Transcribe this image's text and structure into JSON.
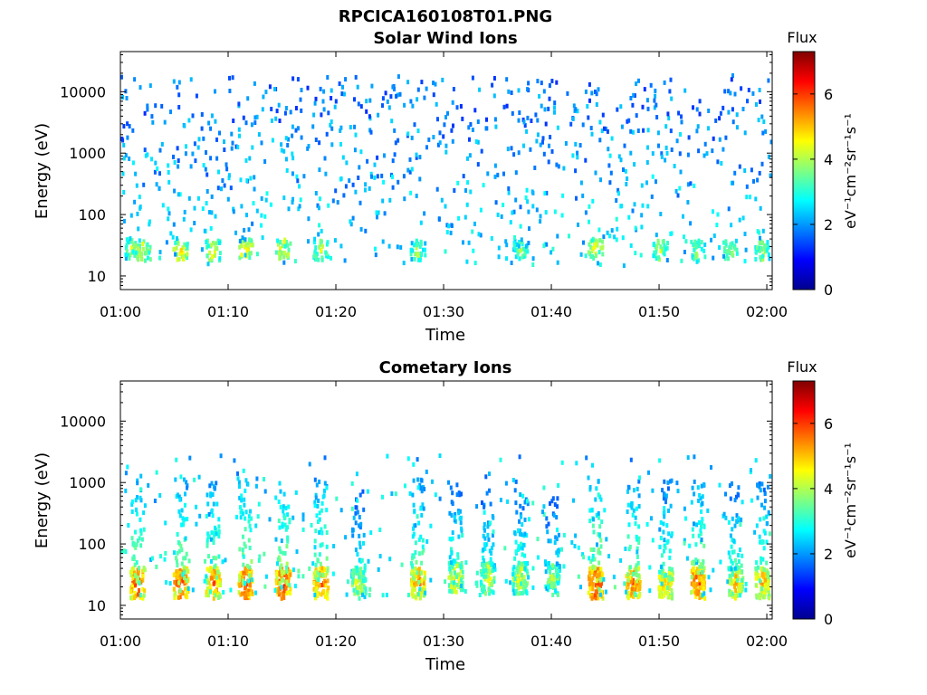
{
  "figure_title": "RPCICA160108T01.PNG",
  "colors": {
    "colormap": [
      "#00008f",
      "#0000ff",
      "#0080ff",
      "#00ffff",
      "#80ff80",
      "#ffff00",
      "#ff8000",
      "#ff0000",
      "#800000"
    ],
    "axis": "#000000",
    "background": "#ffffff"
  },
  "chart_data": [
    {
      "type": "heatmap",
      "title": "Solar Wind Ions",
      "xlabel": "Time",
      "ylabel": "Energy (eV)",
      "x_ticks": [
        "01:00",
        "01:10",
        "01:20",
        "01:30",
        "01:40",
        "01:50",
        "02:00"
      ],
      "x_range": [
        "01:00",
        "02:00"
      ],
      "y_scale": "log",
      "y_ticks": [
        10,
        100,
        1000,
        10000
      ],
      "y_tick_labels": [
        "10",
        "100",
        "1000",
        "10000"
      ],
      "ylim": [
        6,
        45000
      ],
      "colorbar": {
        "title": "Flux",
        "label": "eV⁻¹cm⁻²sr⁻¹s⁻¹",
        "range": [
          0,
          7.3
        ],
        "ticks": [
          "0",
          "2",
          "4",
          "6"
        ]
      },
      "features": [
        {
          "t_min": 1,
          "e_ev": 30,
          "level": 4.8
        },
        {
          "t_min": 2,
          "e_ev": 28,
          "level": 5.0
        },
        {
          "t_min": 5.5,
          "e_ev": 28,
          "level": 5.3
        },
        {
          "t_min": 8.5,
          "e_ev": 28,
          "level": 5.0
        },
        {
          "t_min": 11.5,
          "e_ev": 30,
          "level": 5.4
        },
        {
          "t_min": 15,
          "e_ev": 30,
          "level": 5.2
        },
        {
          "t_min": 18.5,
          "e_ev": 28,
          "level": 4.8
        },
        {
          "t_min": 27.5,
          "e_ev": 28,
          "level": 4.5
        },
        {
          "t_min": 37,
          "e_ev": 28,
          "level": 4.4
        },
        {
          "t_min": 44,
          "e_ev": 30,
          "level": 5.2
        },
        {
          "t_min": 50,
          "e_ev": 28,
          "level": 4.6
        },
        {
          "t_min": 53.5,
          "e_ev": 28,
          "level": 4.6
        },
        {
          "t_min": 56.5,
          "e_ev": 28,
          "level": 4.5
        },
        {
          "t_min": 59.5,
          "e_ev": 28,
          "level": 4.6
        }
      ],
      "background_level": 2.2
    },
    {
      "type": "heatmap",
      "title": "Cometary Ions",
      "xlabel": "Time",
      "ylabel": "Energy (eV)",
      "x_ticks": [
        "01:00",
        "01:10",
        "01:20",
        "01:30",
        "01:40",
        "01:50",
        "02:00"
      ],
      "x_range": [
        "01:00",
        "02:00"
      ],
      "y_scale": "log",
      "y_ticks": [
        10,
        100,
        1000,
        10000
      ],
      "y_tick_labels": [
        "10",
        "100",
        "1000",
        "10000"
      ],
      "ylim": [
        6,
        45000
      ],
      "colorbar": {
        "title": "Flux",
        "label": "eV⁻¹cm⁻²sr⁻¹s⁻¹",
        "range": [
          0,
          7.3
        ],
        "ticks": [
          "0",
          "2",
          "4",
          "6"
        ]
      },
      "features": [
        {
          "t_min": 1.5,
          "e_ev": 25,
          "level": 6.5
        },
        {
          "t_min": 5.5,
          "e_ev": 25,
          "level": 6.6
        },
        {
          "t_min": 8.5,
          "e_ev": 25,
          "level": 6.3
        },
        {
          "t_min": 11.5,
          "e_ev": 25,
          "level": 6.7
        },
        {
          "t_min": 15,
          "e_ev": 25,
          "level": 6.8
        },
        {
          "t_min": 18.5,
          "e_ev": 25,
          "level": 6.4
        },
        {
          "t_min": 22,
          "e_ev": 25,
          "level": 5.0
        },
        {
          "t_min": 27.5,
          "e_ev": 25,
          "level": 6.2
        },
        {
          "t_min": 31,
          "e_ev": 30,
          "level": 5.5
        },
        {
          "t_min": 34,
          "e_ev": 30,
          "level": 5.0
        },
        {
          "t_min": 37,
          "e_ev": 30,
          "level": 5.2
        },
        {
          "t_min": 40,
          "e_ev": 30,
          "level": 4.6
        },
        {
          "t_min": 44,
          "e_ev": 25,
          "level": 6.8
        },
        {
          "t_min": 47.5,
          "e_ev": 25,
          "level": 6.3
        },
        {
          "t_min": 50.5,
          "e_ev": 25,
          "level": 5.8
        },
        {
          "t_min": 53.5,
          "e_ev": 25,
          "level": 6.5
        },
        {
          "t_min": 57,
          "e_ev": 25,
          "level": 5.6
        },
        {
          "t_min": 59.5,
          "e_ev": 25,
          "level": 5.8
        }
      ],
      "background_level": 2.6
    }
  ]
}
